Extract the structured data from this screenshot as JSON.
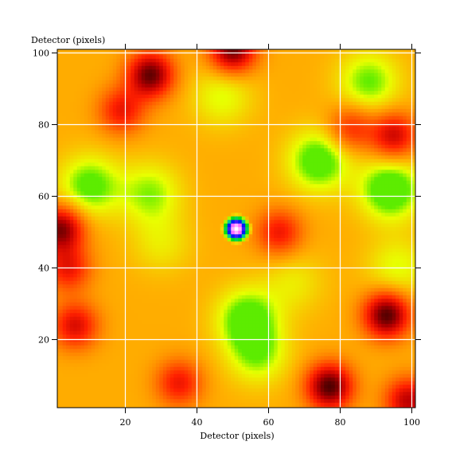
{
  "chart_data": {
    "type": "heatmap",
    "title": "",
    "xlabel": "Detector (pixels)",
    "ylabel": "Detector (pixels)",
    "xlim": [
      1,
      101
    ],
    "ylim": [
      1,
      101
    ],
    "x_ticks": [
      20,
      40,
      60,
      80,
      100
    ],
    "y_ticks": [
      20,
      40,
      60,
      80,
      100
    ],
    "grid": true,
    "grid_color": "#ffffff",
    "colormap": [
      "#000000",
      "#5a0000",
      "#c00000",
      "#ff2000",
      "#ff6a00",
      "#ffb000",
      "#e8ff00",
      "#00e000",
      "#00c0c0",
      "#0000ff",
      "#ff60ff",
      "#ffffff"
    ],
    "background_level": 0.45,
    "sources": [
      {
        "x": 51,
        "y": 51,
        "peak": 1.0,
        "sigma": 3.4
      }
    ],
    "bright_patches": [
      {
        "x": 10,
        "y": 63,
        "level": 0.62
      },
      {
        "x": 27,
        "y": 61,
        "level": 0.58
      },
      {
        "x": 30,
        "y": 47,
        "level": 0.52
      },
      {
        "x": 47,
        "y": 88,
        "level": 0.55
      },
      {
        "x": 54,
        "y": 26,
        "level": 0.63
      },
      {
        "x": 57,
        "y": 16,
        "level": 0.58
      },
      {
        "x": 67,
        "y": 36,
        "level": 0.52
      },
      {
        "x": 74,
        "y": 70,
        "level": 0.64
      },
      {
        "x": 88,
        "y": 92,
        "level": 0.6
      },
      {
        "x": 94,
        "y": 62,
        "level": 0.66
      },
      {
        "x": 96,
        "y": 40,
        "level": 0.55
      }
    ],
    "dark_patches": [
      {
        "x": 2,
        "y": 51,
        "level": 0.12
      },
      {
        "x": 4,
        "y": 40,
        "level": 0.25
      },
      {
        "x": 6,
        "y": 24,
        "level": 0.22
      },
      {
        "x": 27,
        "y": 94,
        "level": 0.1
      },
      {
        "x": 19,
        "y": 84,
        "level": 0.25
      },
      {
        "x": 50,
        "y": 101,
        "level": 0.1
      },
      {
        "x": 63,
        "y": 50,
        "level": 0.25
      },
      {
        "x": 77,
        "y": 7,
        "level": 0.08
      },
      {
        "x": 93,
        "y": 27,
        "level": 0.08
      },
      {
        "x": 95,
        "y": 77,
        "level": 0.2
      },
      {
        "x": 83,
        "y": 79,
        "level": 0.28
      },
      {
        "x": 35,
        "y": 8,
        "level": 0.25
      },
      {
        "x": 99,
        "y": 3,
        "level": 0.18
      }
    ]
  }
}
